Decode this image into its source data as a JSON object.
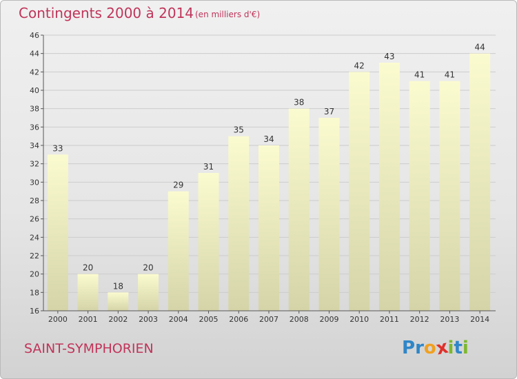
{
  "chart_data": {
    "type": "bar",
    "title": "Contingents 2000 à 2014",
    "subtitle": "(en milliers d'€)",
    "categories": [
      "2000",
      "2001",
      "2002",
      "2003",
      "2004",
      "2005",
      "2006",
      "2007",
      "2008",
      "2009",
      "2010",
      "2011",
      "2012",
      "2013",
      "2014"
    ],
    "values": [
      33,
      20,
      18,
      20,
      29,
      31,
      35,
      34,
      38,
      37,
      42,
      43,
      41,
      41,
      44
    ],
    "ylim": [
      16,
      46
    ],
    "yticks": [
      16,
      18,
      20,
      22,
      24,
      26,
      28,
      30,
      32,
      34,
      36,
      38,
      40,
      42,
      44,
      46
    ],
    "grid": true,
    "colors": {
      "bar_top": "#fbfbd0",
      "bar_bottom": "#d4d4a8",
      "text": "#c0345a",
      "grid": "#cccccc"
    }
  },
  "footer": {
    "place": "SAINT-SYMPHORIEN",
    "logo_letters": [
      {
        "ch": "P",
        "color": "#2f86c8"
      },
      {
        "ch": "r",
        "color": "#2f86c8"
      },
      {
        "ch": "o",
        "color": "#f0a020"
      },
      {
        "ch": "x",
        "color": "#e0302a"
      },
      {
        "ch": "i",
        "color": "#7cb82f"
      },
      {
        "ch": "t",
        "color": "#2f86c8"
      },
      {
        "ch": "i",
        "color": "#7cb82f"
      }
    ]
  }
}
